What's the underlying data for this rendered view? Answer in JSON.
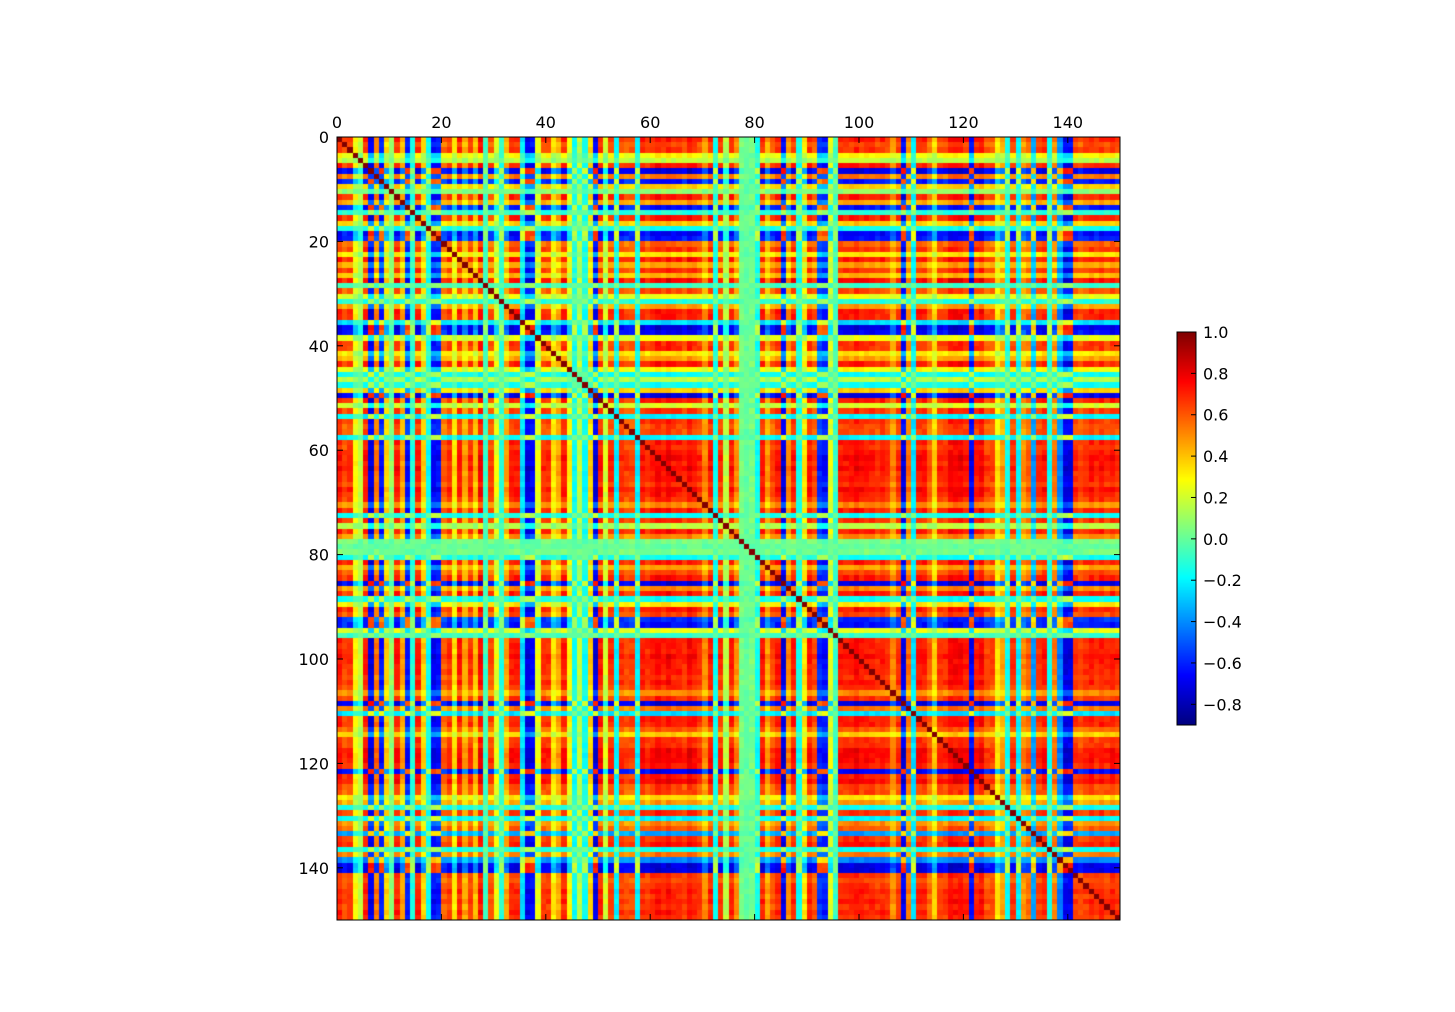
{
  "chart_data": {
    "type": "heatmap",
    "title": "",
    "xlabel": "",
    "ylabel": "",
    "matrix_size": 150,
    "xlim": [
      0,
      150
    ],
    "ylim": [
      150,
      0
    ],
    "x_ticks": [
      "0",
      "20",
      "40",
      "60",
      "80",
      "100",
      "120",
      "140"
    ],
    "y_ticks": [
      "0",
      "20",
      "40",
      "60",
      "80",
      "100",
      "120",
      "140"
    ],
    "colormap": "jet",
    "grid": false,
    "diagonal_value": 1.0,
    "value_range": [
      -0.9,
      1.0
    ],
    "colorbar": {
      "placement": "right",
      "range": [
        -0.9,
        1.0
      ],
      "ticks": [
        "1.0",
        "0.8",
        "0.6",
        "0.4",
        "0.2",
        "0.0",
        "−0.2",
        "−0.4",
        "−0.6",
        "−0.8"
      ],
      "tick_values": [
        1.0,
        0.8,
        0.6,
        0.4,
        0.2,
        0.0,
        -0.2,
        -0.4,
        -0.6,
        -0.8
      ]
    },
    "loadings": [
      0.85,
      0.75,
      0.8,
      0.35,
      0.2,
      0.85,
      -0.85,
      0.65,
      -0.75,
      0.45,
      0.1,
      0.85,
      0.55,
      -0.75,
      -0.15,
      0.85,
      0.45,
      -0.2,
      -0.8,
      -0.75,
      0.7,
      0.8,
      0.4,
      0.85,
      0.55,
      0.8,
      0.5,
      0.9,
      -0.1,
      0.75,
      0.3,
      -0.15,
      0.55,
      0.85,
      0.85,
      -0.3,
      -0.85,
      -0.8,
      0.3,
      0.8,
      0.8,
      0.4,
      0.55,
      0.85,
      0.35,
      -0.2,
      0.2,
      -0.2,
      0.45,
      -0.85,
      0.85,
      0.25,
      0.8,
      -0.25,
      0.8,
      0.75,
      0.75,
      -0.25,
      0.85,
      0.8,
      0.85,
      0.9,
      0.85,
      0.9,
      0.85,
      0.85,
      0.8,
      0.9,
      0.85,
      0.8,
      0.6,
      0.85,
      -0.2,
      0.8,
      0.2,
      0.85,
      0.6,
      0.05,
      0.0,
      0.05,
      -0.2,
      0.85,
      0.55,
      0.75,
      0.85,
      -0.85,
      0.6,
      0.85,
      -0.2,
      0.4,
      0.85,
      0.75,
      -0.7,
      -0.75,
      0.3,
      -0.1,
      0.85,
      0.85,
      0.85,
      0.9,
      0.85,
      0.85,
      0.85,
      0.8,
      0.85,
      0.8,
      0.6,
      0.8,
      -0.85,
      0.65,
      -0.3,
      0.85,
      0.85,
      0.7,
      0.45,
      0.8,
      0.8,
      0.9,
      0.9,
      0.9,
      0.85,
      -0.8,
      0.85,
      0.9,
      0.75,
      0.75,
      0.4,
      0.55,
      -0.2,
      0.8,
      -0.25,
      0.6,
      0.7,
      -0.45,
      0.8,
      0.85,
      -0.2,
      0.65,
      -0.5,
      -0.85,
      -0.85,
      0.8,
      0.75,
      0.8,
      0.85,
      0.8,
      0.85,
      0.8,
      0.85,
      0.8
    ]
  }
}
